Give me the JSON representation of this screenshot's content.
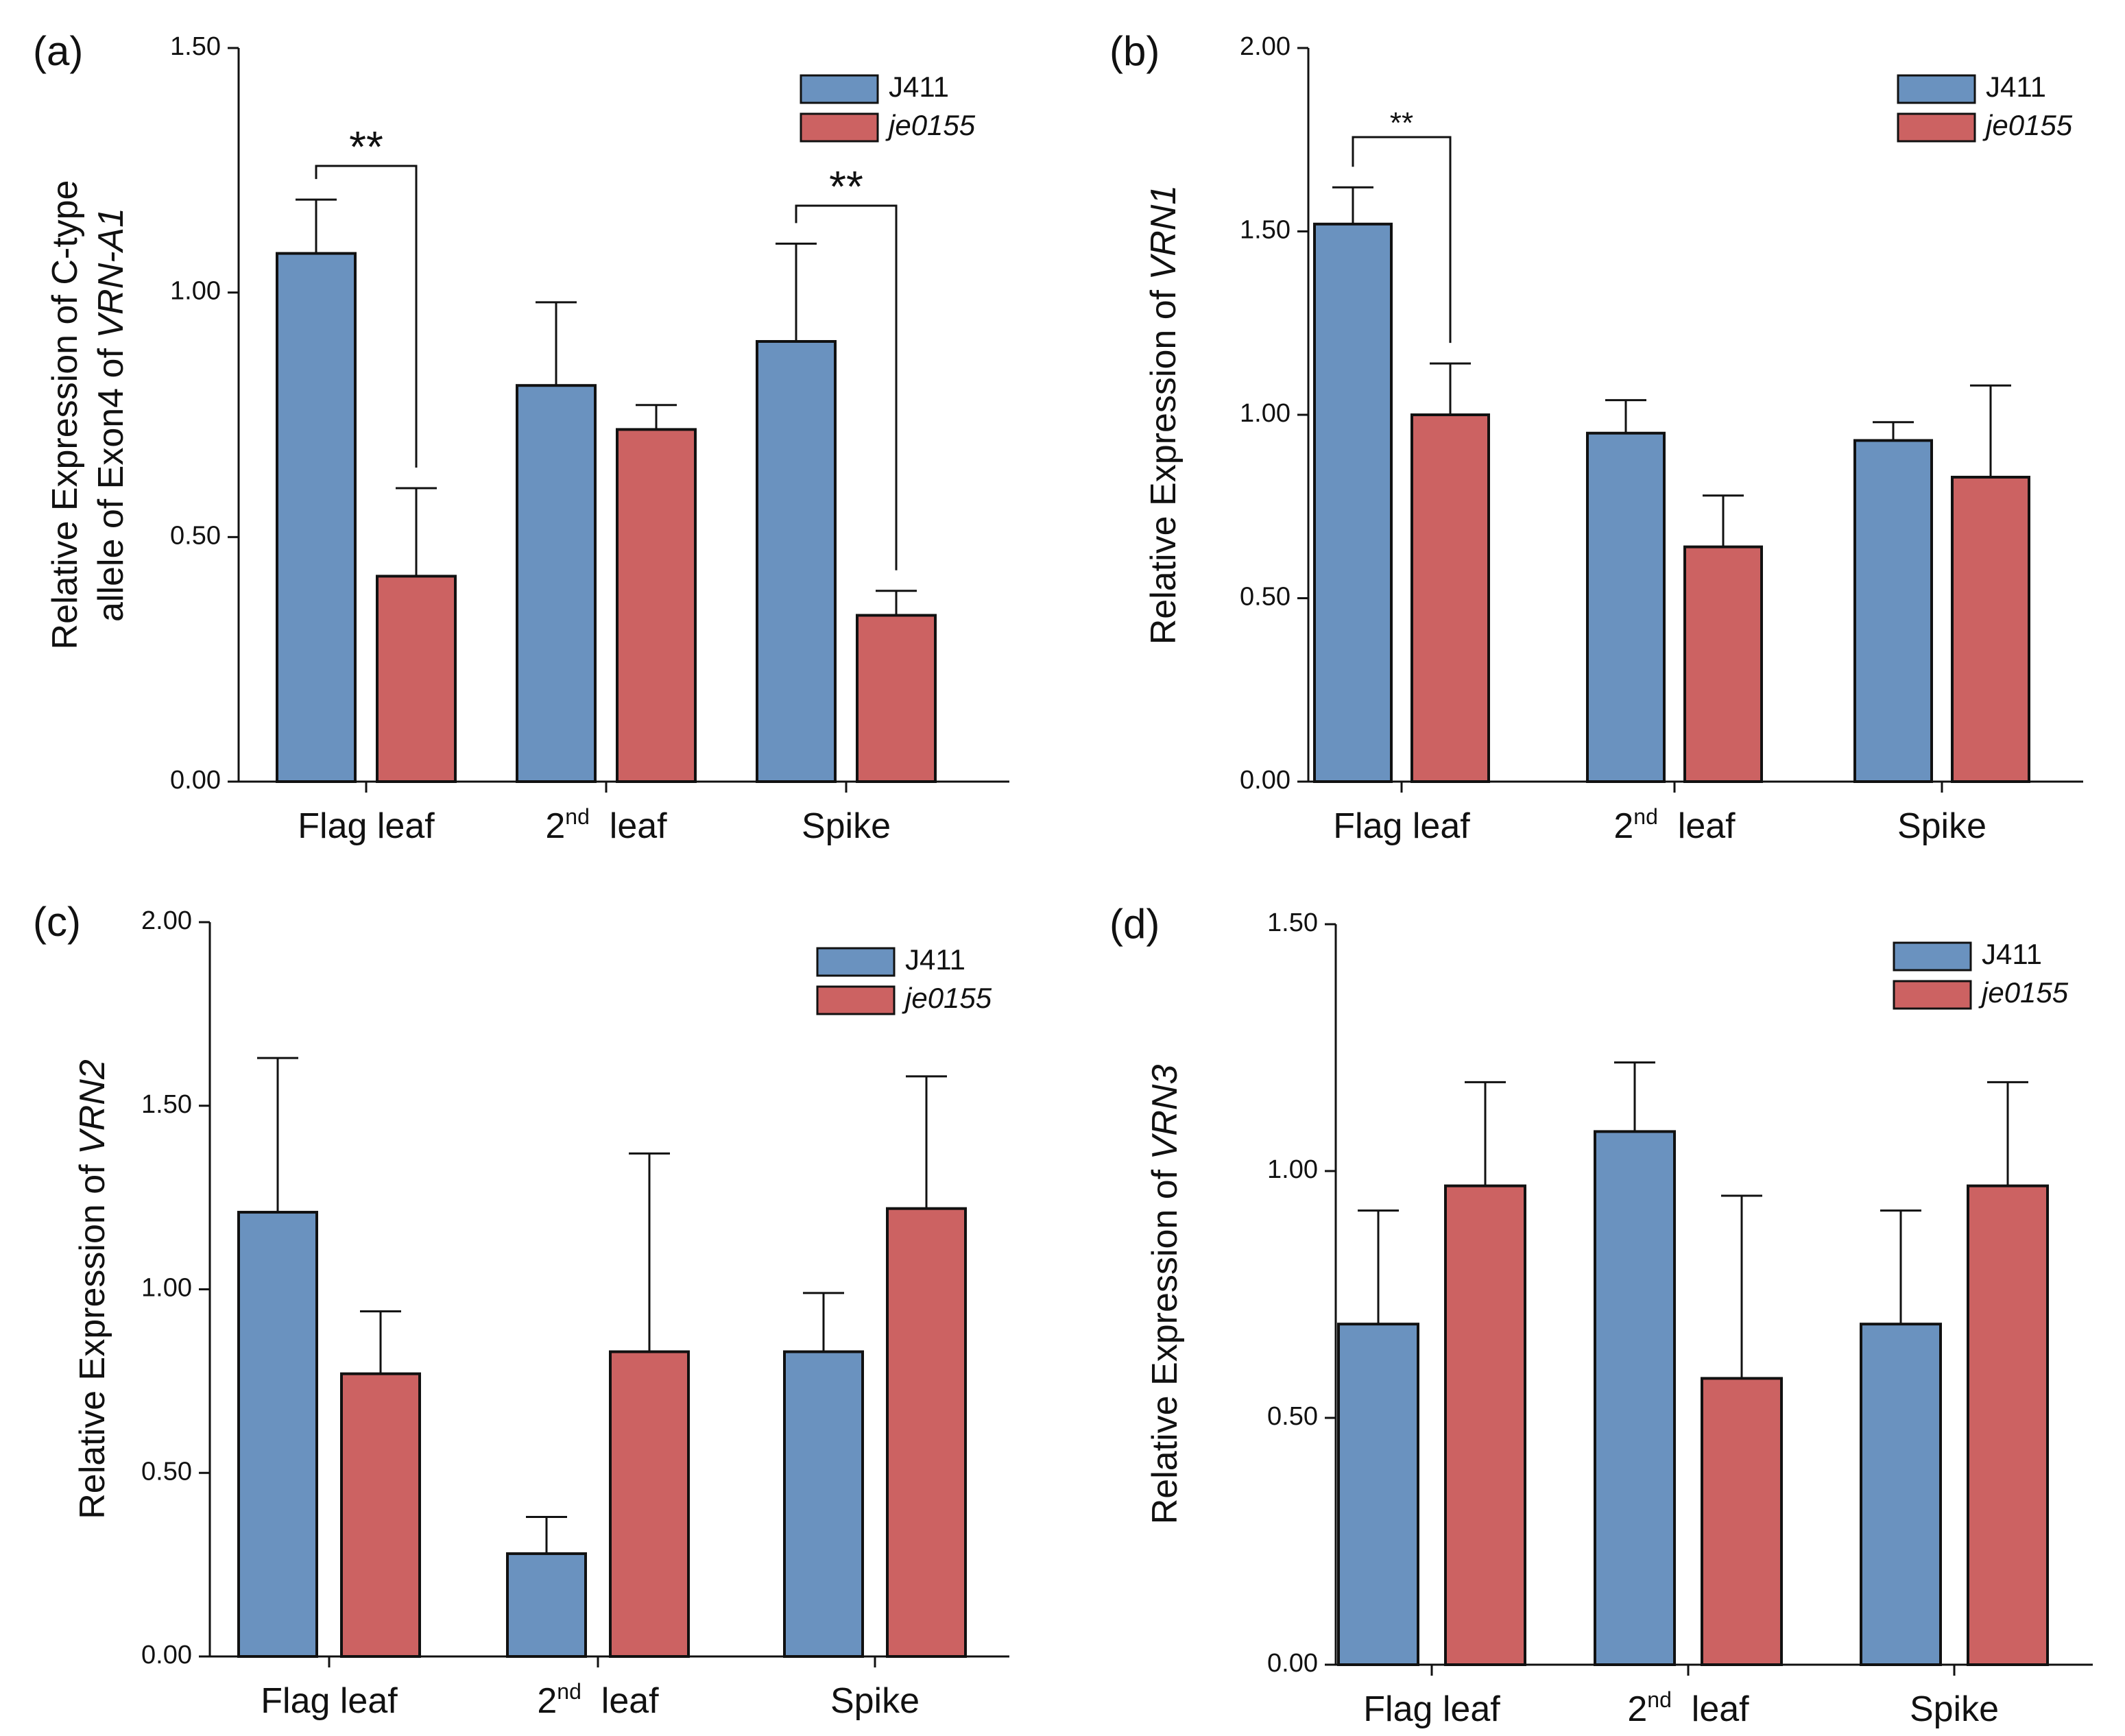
{
  "colors": {
    "j411": "#6a92bf",
    "je0155": "#cc6262",
    "axis": "#111111"
  },
  "panels": [
    {
      "letter": "(a)",
      "ylabel_lines": [
        [
          {
            "text": "Relative Expression of C-type",
            "italic": false
          }
        ],
        [
          {
            "text": "allele of Exon4 of ",
            "italic": false
          },
          {
            "text": "VRN-A1",
            "italic": true
          }
        ]
      ],
      "ylim": [
        0,
        1.5
      ],
      "yticks": [
        "0.00",
        "0.50",
        "1.00",
        "1.50"
      ],
      "categories": [
        "Flag leaf",
        "2nd leaf",
        "Spike"
      ],
      "legend": [
        {
          "name": "J411",
          "italic": false
        },
        {
          "name": "je0155",
          "italic": true
        }
      ],
      "sig": [
        {
          "group": 0,
          "text": "**"
        },
        {
          "group": 2,
          "text": "**"
        }
      ]
    },
    {
      "letter": "(b)",
      "ylabel_lines": [
        [
          {
            "text": "Relative Expression of ",
            "italic": false
          },
          {
            "text": "VRN1",
            "italic": true
          }
        ]
      ],
      "ylim": [
        0,
        2.0
      ],
      "yticks": [
        "0.00",
        "0.50",
        "1.00",
        "1.50",
        "2.00"
      ],
      "categories": [
        "Flag leaf",
        "2nd leaf",
        "Spike"
      ],
      "legend": [
        {
          "name": "J411",
          "italic": false
        },
        {
          "name": "je0155",
          "italic": true
        }
      ],
      "sig": [
        {
          "group": 0,
          "text": "**"
        }
      ]
    },
    {
      "letter": "(c)",
      "ylabel_lines": [
        [
          {
            "text": "Relative Expression of ",
            "italic": false
          },
          {
            "text": "VRN2",
            "italic": true
          }
        ]
      ],
      "ylim": [
        0,
        2.0
      ],
      "yticks": [
        "0.00",
        "0.50",
        "1.00",
        "1.50",
        "2.00"
      ],
      "categories": [
        "Flag leaf",
        "2nd leaf",
        "Spike"
      ],
      "legend": [
        {
          "name": "J411",
          "italic": false
        },
        {
          "name": "je0155",
          "italic": true
        }
      ],
      "sig": []
    },
    {
      "letter": "(d)",
      "ylabel_lines": [
        [
          {
            "text": "Relative Expression of ",
            "italic": false
          },
          {
            "text": "VRN3",
            "italic": true
          }
        ]
      ],
      "ylim": [
        0,
        1.5
      ],
      "yticks": [
        "0.00",
        "0.50",
        "1.00",
        "1.50"
      ],
      "categories": [
        "Flag leaf",
        "2nd leaf",
        "Spike"
      ],
      "legend": [
        {
          "name": "J411",
          "italic": false
        },
        {
          "name": "je0155",
          "italic": true
        }
      ],
      "sig": []
    }
  ],
  "chart_data": [
    {
      "type": "bar",
      "panel": "(a)",
      "ylabel": "Relative Expression of C-type allele of Exon4 of VRN-A1",
      "categories": [
        "Flag leaf",
        "2nd leaf",
        "Spike"
      ],
      "ylim": [
        0,
        1.5
      ],
      "series": [
        {
          "name": "J411",
          "values": [
            1.08,
            0.81,
            0.9
          ],
          "errors": [
            0.11,
            0.17,
            0.2
          ]
        },
        {
          "name": "je0155",
          "values": [
            0.42,
            0.72,
            0.34
          ],
          "errors": [
            0.18,
            0.05,
            0.05
          ]
        }
      ],
      "annotations": [
        "** Flag leaf J411 vs je0155",
        "** Spike J411 vs je0155"
      ]
    },
    {
      "type": "bar",
      "panel": "(b)",
      "ylabel": "Relative Expression of VRN1",
      "categories": [
        "Flag leaf",
        "2nd leaf",
        "Spike"
      ],
      "ylim": [
        0,
        2.0
      ],
      "series": [
        {
          "name": "J411",
          "values": [
            1.52,
            0.95,
            0.93
          ],
          "errors": [
            0.1,
            0.09,
            0.05
          ]
        },
        {
          "name": "je0155",
          "values": [
            1.0,
            0.64,
            0.83
          ],
          "errors": [
            0.14,
            0.14,
            0.25
          ]
        }
      ],
      "annotations": [
        "** Flag leaf J411 vs je0155"
      ]
    },
    {
      "type": "bar",
      "panel": "(c)",
      "ylabel": "Relative Expression of VRN2",
      "categories": [
        "Flag leaf",
        "2nd leaf",
        "Spike"
      ],
      "ylim": [
        0,
        2.0
      ],
      "series": [
        {
          "name": "J411",
          "values": [
            1.21,
            0.28,
            0.83
          ],
          "errors": [
            0.42,
            0.1,
            0.16
          ]
        },
        {
          "name": "je0155",
          "values": [
            0.77,
            0.83,
            1.22
          ],
          "errors": [
            0.17,
            0.54,
            0.36
          ]
        }
      ]
    },
    {
      "type": "bar",
      "panel": "(d)",
      "ylabel": "Relative Expression of VRN3",
      "categories": [
        "Flag leaf",
        "2nd leaf",
        "Spike"
      ],
      "ylim": [
        0,
        1.5
      ],
      "series": [
        {
          "name": "J411",
          "values": [
            0.69,
            1.08,
            0.69
          ],
          "errors": [
            0.23,
            0.14,
            0.23
          ]
        },
        {
          "name": "je0155",
          "values": [
            0.97,
            0.58,
            0.97
          ],
          "errors": [
            0.21,
            0.37,
            0.21
          ]
        }
      ]
    }
  ]
}
